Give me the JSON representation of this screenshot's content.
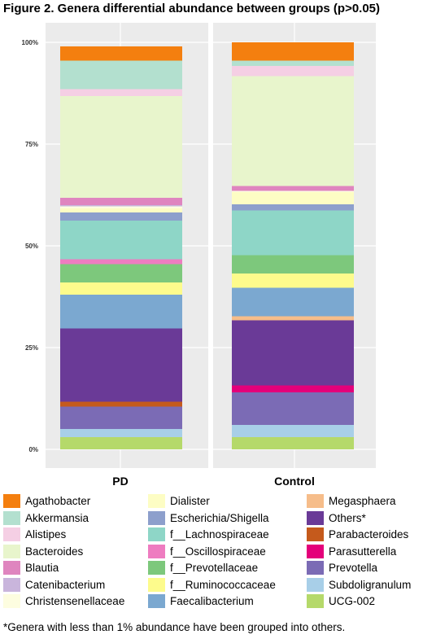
{
  "figure": {
    "title": "Figure 2. Genera differential abundance between groups (p>0.05)",
    "footnote": "*Genera with less than 1% abundance have been grouped into others."
  },
  "chart_data": {
    "type": "bar",
    "stacked": true,
    "facets": [
      "PD",
      "Control"
    ],
    "y_ticks": [
      "0%",
      "25%",
      "50%",
      "75%",
      "100%"
    ],
    "ylim": [
      0,
      100
    ],
    "grid": true,
    "legend_position": "bottom",
    "series": [
      {
        "name": "UCG-002",
        "color": "#b5d96a",
        "values": [
          3.0,
          3.0
        ]
      },
      {
        "name": "Subdoligranulum",
        "color": "#a8cfe8",
        "values": [
          2.0,
          3.0
        ]
      },
      {
        "name": "Prevotella",
        "color": "#7b6bb5",
        "values": [
          5.5,
          8.0
        ]
      },
      {
        "name": "Parasutterella",
        "color": "#e4007a",
        "values": [
          0.0,
          1.7
        ]
      },
      {
        "name": "Parabacteroides",
        "color": "#c55a1c",
        "values": [
          1.2,
          0.0
        ]
      },
      {
        "name": "Others*",
        "color": "#6a3a97",
        "values": [
          18.0,
          16.0
        ]
      },
      {
        "name": "Megasphaera",
        "color": "#f6bd8a",
        "values": [
          0.0,
          1.0
        ]
      },
      {
        "name": "Faecalibacterium",
        "color": "#7ba8d0",
        "values": [
          8.3,
          7.0
        ]
      },
      {
        "name": "f__Ruminococcaceae",
        "color": "#fdfb8c",
        "values": [
          3.0,
          3.5
        ]
      },
      {
        "name": "f__Prevotellaceae",
        "color": "#7dc87c",
        "values": [
          4.5,
          4.5
        ]
      },
      {
        "name": "f__Oscillospiraceae",
        "color": "#ee7cc0",
        "values": [
          1.2,
          0.0
        ]
      },
      {
        "name": "f__Lachnospiraceae",
        "color": "#8ed6c7",
        "values": [
          9.5,
          11.0
        ]
      },
      {
        "name": "Escherichia/Shigella",
        "color": "#8d9fcc",
        "values": [
          2.0,
          1.5
        ]
      },
      {
        "name": "Dialister",
        "color": "#fdfdc4",
        "values": [
          1.0,
          3.0
        ]
      },
      {
        "name": "Christensenellaceae",
        "color": "#fdfde0",
        "values": [
          0.5,
          0.3
        ]
      },
      {
        "name": "Catenibacterium",
        "color": "#c9b5dc",
        "values": [
          0.3,
          0.0
        ]
      },
      {
        "name": "Blautia",
        "color": "#df85bf",
        "values": [
          1.8,
          1.2
        ]
      },
      {
        "name": "Bacteroides",
        "color": "#e8f5cc",
        "values": [
          25.0,
          27.0
        ]
      },
      {
        "name": "Alistipes",
        "color": "#f5cfe4",
        "values": [
          1.7,
          2.5
        ]
      },
      {
        "name": "Akkermansia",
        "color": "#b3e0cf",
        "values": [
          7.0,
          1.3
        ]
      },
      {
        "name": "Agathobacter",
        "color": "#f47f0f",
        "values": [
          3.5,
          4.5
        ]
      }
    ]
  },
  "legend": {
    "items": [
      {
        "label": "Agathobacter",
        "color": "#f47f0f"
      },
      {
        "label": "Akkermansia",
        "color": "#b3e0cf"
      },
      {
        "label": "Alistipes",
        "color": "#f5cfe4"
      },
      {
        "label": "Bacteroides",
        "color": "#e8f5cc"
      },
      {
        "label": "Blautia",
        "color": "#df85bf"
      },
      {
        "label": "Catenibacterium",
        "color": "#c9b5dc"
      },
      {
        "label": "Christensenellaceae",
        "color": "#fdfde0"
      },
      {
        "label": "Dialister",
        "color": "#fdfdc4"
      },
      {
        "label": "Escherichia/Shigella",
        "color": "#8d9fcc"
      },
      {
        "label": "f__Lachnospiraceae",
        "color": "#8ed6c7"
      },
      {
        "label": "f__Oscillospiraceae",
        "color": "#ee7cc0"
      },
      {
        "label": "f__Prevotellaceae",
        "color": "#7dc87c"
      },
      {
        "label": "f__Ruminococcaceae",
        "color": "#fdfb8c"
      },
      {
        "label": "Faecalibacterium",
        "color": "#7ba8d0"
      },
      {
        "label": "Megasphaera",
        "color": "#f6bd8a"
      },
      {
        "label": "Others*",
        "color": "#6a3a97"
      },
      {
        "label": "Parabacteroides",
        "color": "#c55a1c"
      },
      {
        "label": "Parasutterella",
        "color": "#e4007a"
      },
      {
        "label": "Prevotella",
        "color": "#7b6bb5"
      },
      {
        "label": "Subdoligranulum",
        "color": "#a8cfe8"
      },
      {
        "label": "UCG-002",
        "color": "#b5d96a"
      }
    ]
  }
}
